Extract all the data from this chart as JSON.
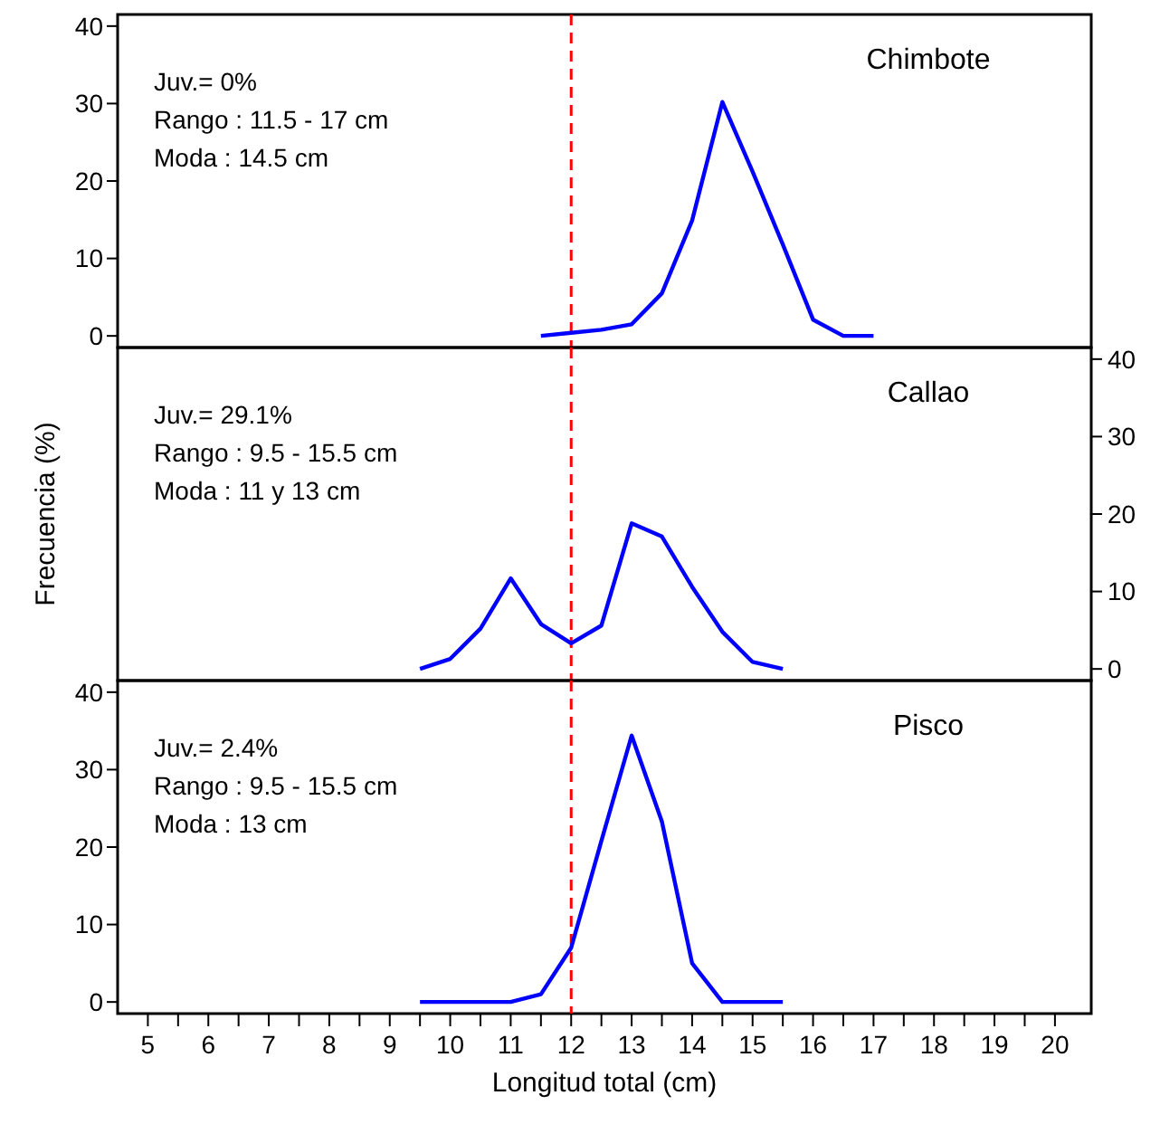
{
  "chart_data": [
    {
      "type": "line",
      "title": "Chimbote",
      "annotations": [
        "Juv.= 0%",
        "Rango : 11.5 - 17 cm",
        "Moda : 14.5 cm"
      ],
      "x": [
        11.5,
        12,
        12.5,
        13,
        13.5,
        14,
        14.5,
        15,
        15.5,
        16,
        16.5,
        17
      ],
      "series": [
        {
          "color": "#0000ff",
          "values": [
            0,
            0.4,
            0.8,
            1.5,
            5.5,
            14.9,
            30.2,
            21.2,
            11.8,
            2.1,
            0,
            0
          ]
        }
      ],
      "xlim": [
        4.5,
        20.6
      ],
      "ylim": [
        -1.5,
        41.5
      ],
      "yticks": [
        0,
        10,
        20,
        30,
        40
      ],
      "ref_lines": [
        {
          "axis": "x",
          "value": 12,
          "color": "#ff0000",
          "line_style": "dashed"
        }
      ],
      "tick_labels": "y",
      "grid": false,
      "marker": "none",
      "line_style": "solid"
    },
    {
      "type": "line",
      "title": "Callao",
      "ylabel": "Frecuencia (%)",
      "annotations": [
        "Juv.= 29.1%",
        "Rango : 9.5 - 15.5 cm",
        "Moda : 11 y 13 cm"
      ],
      "x": [
        9.5,
        10,
        10.5,
        11,
        11.5,
        12,
        12.5,
        13,
        13.5,
        14,
        14.5,
        15,
        15.5
      ],
      "series": [
        {
          "color": "#0000ff",
          "axis": "y2",
          "values": [
            0,
            1.3,
            5.2,
            11.7,
            5.8,
            3.3,
            5.6,
            18.8,
            17.1,
            10.6,
            4.8,
            0.9,
            0
          ]
        }
      ],
      "xlim": [
        4.5,
        20.6
      ],
      "y2lim": [
        -1.5,
        41.5
      ],
      "y2ticks": [
        0,
        10,
        20,
        30,
        40
      ],
      "ref_lines": [
        {
          "axis": "x",
          "value": 12,
          "color": "#ff0000",
          "line_style": "dashed"
        }
      ],
      "tick_labels": "y",
      "grid": false,
      "marker": "none",
      "line_style": "solid"
    },
    {
      "type": "line",
      "title": "Pisco",
      "xlabel": "Longitud total (cm)",
      "annotations": [
        "Juv.= 2.4%",
        "Rango : 9.5 - 15.5 cm",
        "Moda : 13 cm"
      ],
      "x": [
        9.5,
        10,
        10.5,
        11,
        11.5,
        12,
        12.5,
        13,
        13.5,
        14,
        14.5,
        15,
        15.5
      ],
      "series": [
        {
          "color": "#0000ff",
          "values": [
            0,
            0,
            0,
            0,
            1.0,
            7.0,
            20.8,
            34.4,
            23.3,
            5.0,
            0,
            0,
            0
          ]
        }
      ],
      "xlim": [
        4.5,
        20.6
      ],
      "xticks": [
        5,
        {
          "value": 5.5,
          "label": null
        },
        6,
        {
          "value": 6.5,
          "label": null
        },
        7,
        {
          "value": 7.5,
          "label": null
        },
        8,
        {
          "value": 8.5,
          "label": null
        },
        9,
        {
          "value": 9.5,
          "label": null
        },
        10,
        {
          "value": 10.5,
          "label": null
        },
        11,
        {
          "value": 11.5,
          "label": null
        },
        12,
        {
          "value": 12.5,
          "label": null
        },
        13,
        {
          "value": 13.5,
          "label": null
        },
        14,
        {
          "value": 14.5,
          "label": null
        },
        15,
        {
          "value": 15.5,
          "label": null
        },
        16,
        {
          "value": 16.5,
          "label": null
        },
        17,
        {
          "value": 17.5,
          "label": null
        },
        18,
        {
          "value": 18.5,
          "label": null
        },
        19,
        {
          "value": 19.5,
          "label": null
        },
        20
      ],
      "ylim": [
        -1.5,
        41.5
      ],
      "yticks": [
        0,
        10,
        20,
        30,
        40
      ],
      "ref_lines": [
        {
          "axis": "x",
          "value": 12,
          "color": "#ff0000",
          "line_style": "dashed"
        }
      ],
      "grid": false,
      "marker": "none",
      "line_style": "solid"
    }
  ]
}
